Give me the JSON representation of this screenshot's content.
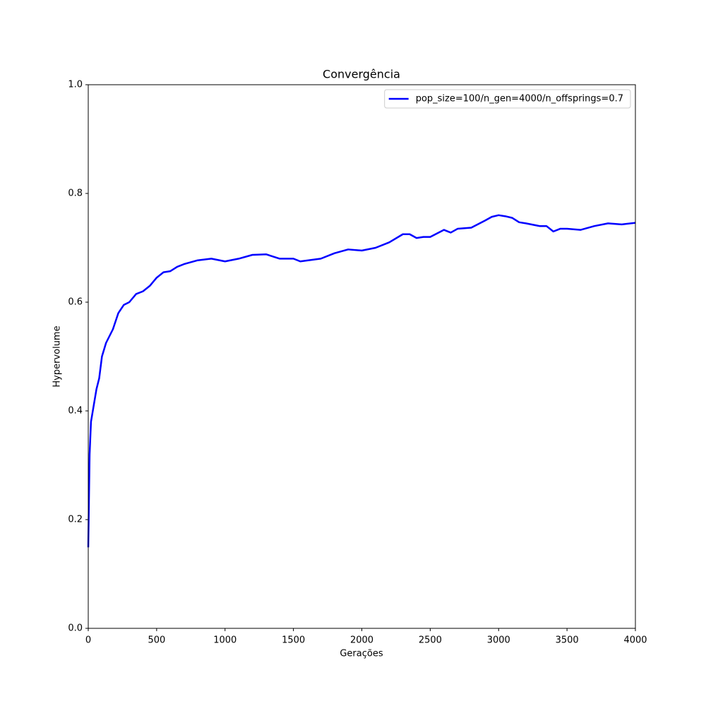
{
  "chart_data": {
    "type": "line",
    "title": "Convergência",
    "xlabel": "Gerações",
    "ylabel": "Hypervolume",
    "x": [
      0,
      10,
      20,
      40,
      60,
      80,
      100,
      130,
      180,
      220,
      260,
      300,
      350,
      400,
      450,
      500,
      550,
      600,
      650,
      700,
      800,
      900,
      1000,
      1100,
      1200,
      1300,
      1400,
      1500,
      1550,
      1700,
      1800,
      1900,
      2000,
      2100,
      2200,
      2300,
      2350,
      2400,
      2450,
      2500,
      2600,
      2650,
      2700,
      2800,
      2900,
      2950,
      3000,
      3050,
      3100,
      3150,
      3200,
      3300,
      3350,
      3400,
      3450,
      3500,
      3600,
      3700,
      3800,
      3900,
      4000
    ],
    "series": [
      {
        "name": "pop_size=100/n_gen=4000/n_offsprings=0.7",
        "color": "#0000ff",
        "values": [
          0.149,
          0.32,
          0.38,
          0.41,
          0.44,
          0.46,
          0.5,
          0.525,
          0.55,
          0.58,
          0.595,
          0.6,
          0.615,
          0.62,
          0.63,
          0.645,
          0.655,
          0.657,
          0.665,
          0.67,
          0.677,
          0.68,
          0.675,
          0.68,
          0.687,
          0.688,
          0.68,
          0.68,
          0.675,
          0.68,
          0.69,
          0.697,
          0.695,
          0.7,
          0.71,
          0.725,
          0.725,
          0.718,
          0.72,
          0.72,
          0.733,
          0.728,
          0.735,
          0.737,
          0.75,
          0.757,
          0.76,
          0.758,
          0.755,
          0.747,
          0.745,
          0.74,
          0.74,
          0.73,
          0.735,
          0.735,
          0.733,
          0.74,
          0.745,
          0.743,
          0.746
        ]
      }
    ],
    "xlim": [
      0,
      4000
    ],
    "xticks": [
      0,
      500,
      1000,
      1500,
      2000,
      2500,
      3000,
      3500,
      4000
    ],
    "ylim": [
      0,
      1
    ],
    "yticks": [
      {
        "value": 0,
        "label": "0.0"
      },
      0.2,
      0.4,
      0.6,
      0.8,
      {
        "value": 1,
        "label": "1.0"
      }
    ],
    "grid": false,
    "legend": "upper right"
  }
}
